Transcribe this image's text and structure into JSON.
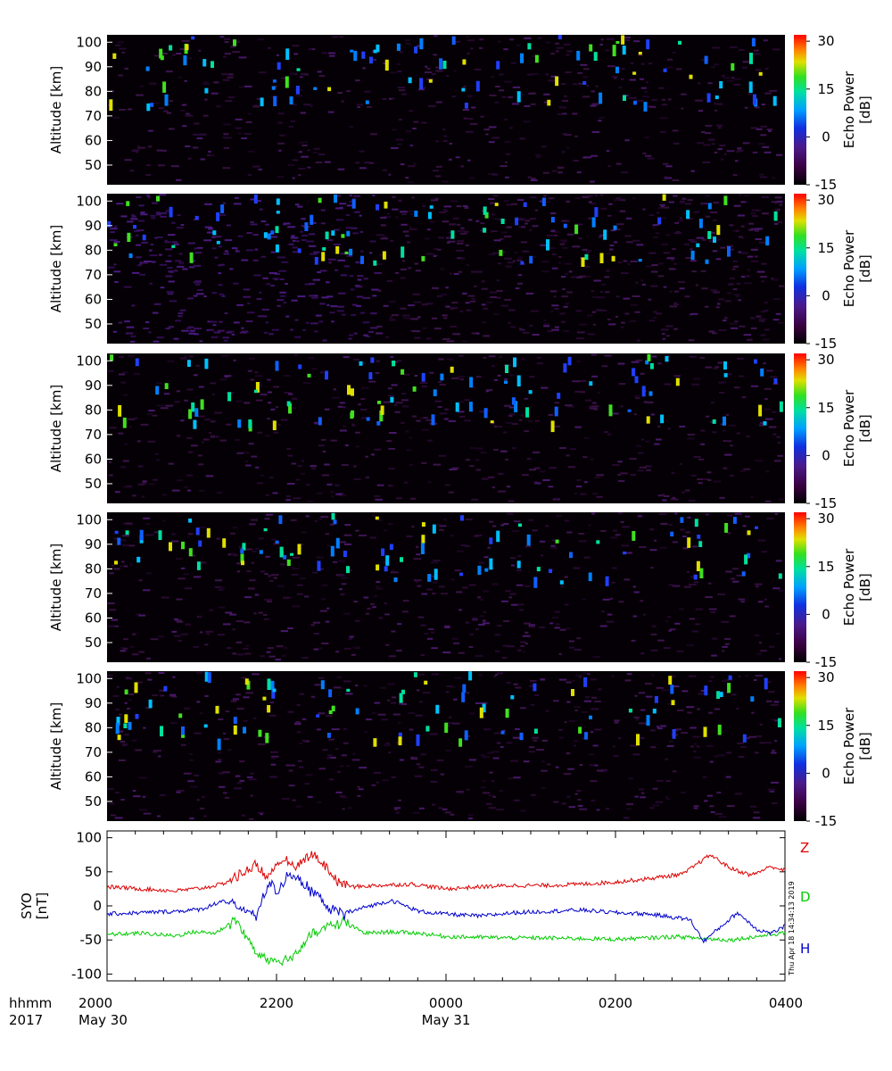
{
  "chart_data": {
    "type": "heatmap",
    "panels": [
      {
        "ylabel": "Altitude  [km]",
        "yticks": [
          "100",
          "90",
          "80",
          "70",
          "60",
          "50"
        ],
        "ylim": [
          42,
          103
        ]
      },
      {
        "ylabel": "Altitude  [km]",
        "yticks": [
          "100",
          "90",
          "80",
          "70",
          "60",
          "50"
        ],
        "ylim": [
          42,
          103
        ]
      },
      {
        "ylabel": "Altitude  [km]",
        "yticks": [
          "100",
          "90",
          "80",
          "70",
          "60",
          "50"
        ],
        "ylim": [
          42,
          103
        ]
      },
      {
        "ylabel": "Altitude  [km]",
        "yticks": [
          "100",
          "90",
          "80",
          "70",
          "60",
          "50"
        ],
        "ylim": [
          42,
          103
        ]
      },
      {
        "ylabel": "Altitude  [km]",
        "yticks": [
          "100",
          "90",
          "80",
          "70",
          "60",
          "50"
        ],
        "ylim": [
          42,
          103
        ]
      }
    ],
    "colorbar": {
      "label": "Echo Power [dB]",
      "ticks": [
        "30",
        "15",
        "0",
        "-15"
      ],
      "range": [
        -15,
        32
      ]
    },
    "magnetometer": {
      "type": "line",
      "ylabel_top": "SYO",
      "ylabel_bottom": "[nT]",
      "ylim": [
        -110,
        110
      ],
      "yticks": [
        "100",
        "50",
        "0",
        "-50",
        "-100"
      ],
      "series": [
        {
          "name": "Z",
          "color": "#dd0000",
          "points": [
            [
              0,
              28
            ],
            [
              0.05,
              25
            ],
            [
              0.1,
              22
            ],
            [
              0.14,
              26
            ],
            [
              0.17,
              32
            ],
            [
              0.2,
              48
            ],
            [
              0.22,
              60
            ],
            [
              0.24,
              40
            ],
            [
              0.26,
              70
            ],
            [
              0.28,
              55
            ],
            [
              0.3,
              78
            ],
            [
              0.32,
              60
            ],
            [
              0.34,
              35
            ],
            [
              0.36,
              28
            ],
            [
              0.4,
              30
            ],
            [
              0.45,
              32
            ],
            [
              0.5,
              25
            ],
            [
              0.55,
              28
            ],
            [
              0.6,
              30
            ],
            [
              0.65,
              30
            ],
            [
              0.7,
              32
            ],
            [
              0.75,
              35
            ],
            [
              0.8,
              40
            ],
            [
              0.85,
              47
            ],
            [
              0.89,
              75
            ],
            [
              0.92,
              55
            ],
            [
              0.95,
              45
            ],
            [
              0.98,
              58
            ],
            [
              1,
              52
            ]
          ]
        },
        {
          "name": "D",
          "color": "#00cc00",
          "points": [
            [
              0,
              -42
            ],
            [
              0.05,
              -40
            ],
            [
              0.1,
              -44
            ],
            [
              0.13,
              -38
            ],
            [
              0.16,
              -40
            ],
            [
              0.19,
              -20
            ],
            [
              0.22,
              -70
            ],
            [
              0.24,
              -80
            ],
            [
              0.27,
              -78
            ],
            [
              0.3,
              -45
            ],
            [
              0.32,
              -32
            ],
            [
              0.35,
              -24
            ],
            [
              0.38,
              -40
            ],
            [
              0.42,
              -38
            ],
            [
              0.46,
              -40
            ],
            [
              0.5,
              -45
            ],
            [
              0.55,
              -46
            ],
            [
              0.6,
              -47
            ],
            [
              0.65,
              -47
            ],
            [
              0.7,
              -48
            ],
            [
              0.75,
              -49
            ],
            [
              0.8,
              -47
            ],
            [
              0.84,
              -45
            ],
            [
              0.88,
              -48
            ],
            [
              0.92,
              -50
            ],
            [
              0.95,
              -46
            ],
            [
              0.98,
              -42
            ],
            [
              1,
              -40
            ]
          ]
        },
        {
          "name": "H",
          "color": "#0000cc",
          "points": [
            [
              0,
              -12
            ],
            [
              0.05,
              -10
            ],
            [
              0.1,
              -8
            ],
            [
              0.14,
              -5
            ],
            [
              0.17,
              8
            ],
            [
              0.2,
              -5
            ],
            [
              0.22,
              -15
            ],
            [
              0.24,
              38
            ],
            [
              0.25,
              20
            ],
            [
              0.27,
              50
            ],
            [
              0.29,
              30
            ],
            [
              0.31,
              15
            ],
            [
              0.33,
              -5
            ],
            [
              0.35,
              -12
            ],
            [
              0.38,
              -2
            ],
            [
              0.42,
              8
            ],
            [
              0.46,
              -8
            ],
            [
              0.5,
              -12
            ],
            [
              0.55,
              -15
            ],
            [
              0.6,
              -10
            ],
            [
              0.65,
              -8
            ],
            [
              0.7,
              -6
            ],
            [
              0.75,
              -10
            ],
            [
              0.8,
              -12
            ],
            [
              0.86,
              -20
            ],
            [
              0.88,
              -52
            ],
            [
              0.9,
              -35
            ],
            [
              0.93,
              -10
            ],
            [
              0.96,
              -35
            ],
            [
              0.98,
              -40
            ],
            [
              1,
              -30
            ]
          ]
        }
      ]
    },
    "x_axis": {
      "row1_label": "hhmm",
      "row2_label": "2017",
      "ticks": [
        "2000",
        "2200",
        "0000",
        "0200",
        "0400"
      ],
      "dates": [
        "May 30",
        "May 31"
      ]
    },
    "timestamp": "Thu Apr 18 14:34:13 2019"
  }
}
